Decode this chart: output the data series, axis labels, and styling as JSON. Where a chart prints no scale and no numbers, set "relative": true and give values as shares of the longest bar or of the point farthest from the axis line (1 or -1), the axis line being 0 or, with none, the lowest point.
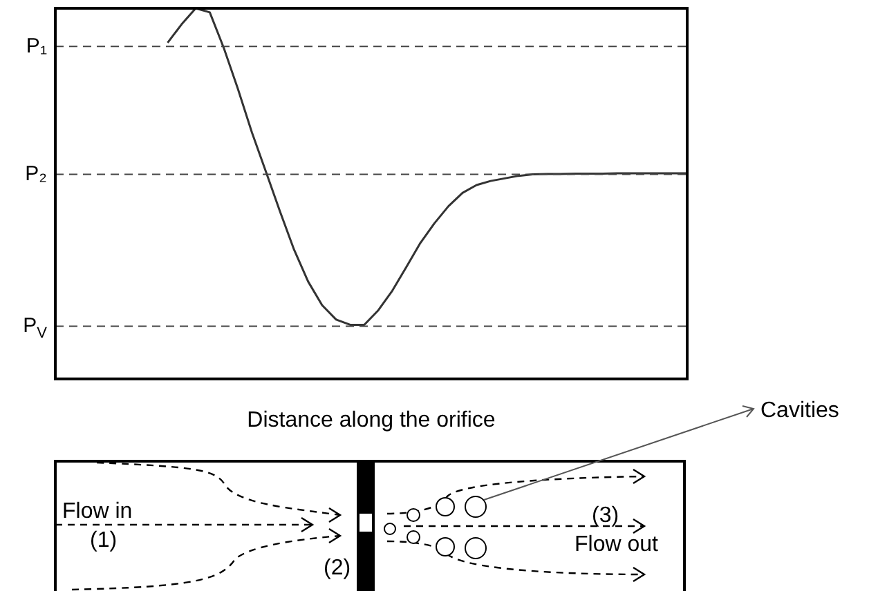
{
  "chart_data": {
    "type": "line",
    "relative": true,
    "xlabel": "Distance along the orifice",
    "categories": [
      null,
      null,
      null,
      null,
      null,
      null,
      null,
      null,
      null,
      null,
      null,
      null,
      null,
      null,
      null,
      null,
      null,
      null,
      null,
      null,
      null,
      null,
      null,
      null,
      null,
      null,
      null,
      null,
      null,
      null,
      null,
      null,
      null,
      null,
      null,
      null,
      null,
      null,
      null,
      null,
      null,
      null,
      null,
      null,
      null,
      null
    ],
    "series": [
      {
        "color": "#333333",
        "values": [
          null,
          null,
          null,
          null,
          null,
          null,
          null,
          null,
          0.907,
          0.957,
          1.0,
          0.989,
          0.893,
          0.783,
          0.665,
          0.559,
          0.452,
          0.349,
          0.263,
          0.199,
          0.16,
          0.146,
          0.146,
          0.185,
          0.238,
          0.302,
          0.367,
          0.42,
          0.466,
          0.502,
          0.523,
          0.534,
          0.541,
          0.548,
          0.552,
          0.553,
          0.553,
          0.554,
          0.554,
          0.554,
          0.555,
          0.555,
          0.555,
          0.555,
          0.555,
          0.555
        ]
      }
    ],
    "ref_lines": [
      {
        "axis": "y",
        "value": 0.897,
        "label": "P₁",
        "line_style": "dashed",
        "color": "#444444"
      },
      {
        "axis": "y",
        "value": 0.552,
        "label": "P₂",
        "line_style": "dashed",
        "color": "#444444"
      },
      {
        "axis": "y",
        "value": 0.142,
        "label": "P$_{V}$",
        "line_style": "dashed",
        "color": "#444444"
      }
    ],
    "annotations": [
      "Flow in",
      "(1)",
      "(2)",
      "Flow out",
      "(3)",
      "Cavities"
    ],
    "grid": false,
    "legend": false,
    "marker": "none",
    "line_style": "solid"
  }
}
